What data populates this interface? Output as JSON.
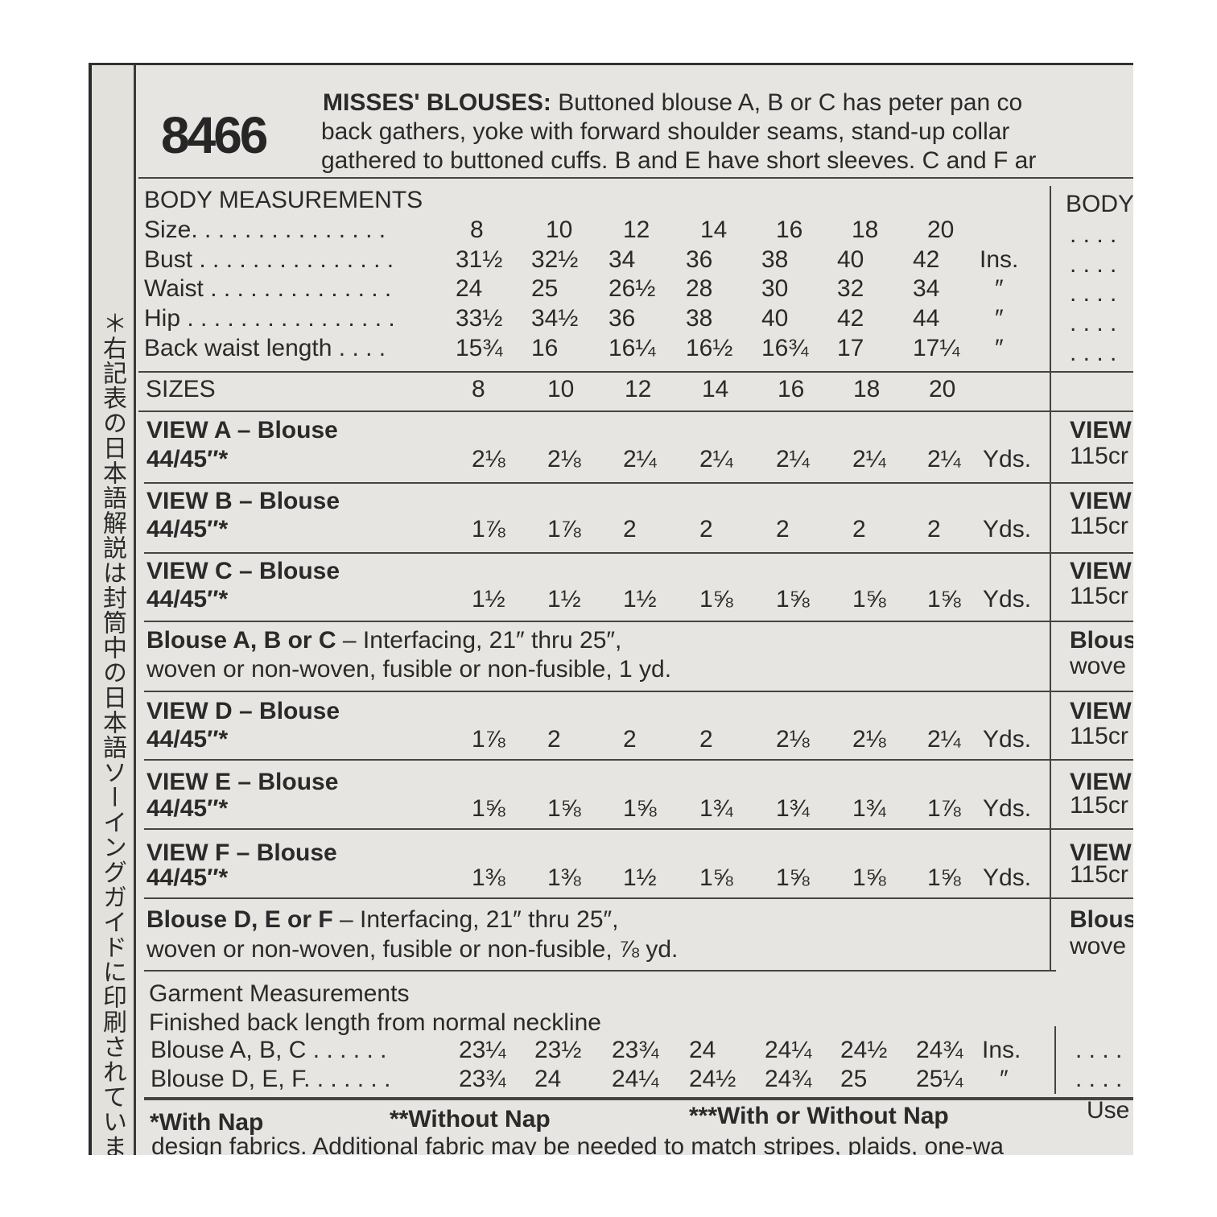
{
  "pattern_number": "8466",
  "side_note": "＊右記表の日本語解説は封筒中の日本語ソーイングガイドに印刷されていま",
  "description": {
    "title": "MISSES' BLOUSES:",
    "line1": "Buttoned blouse A, B or C has peter pan co",
    "line2": "back gathers, yoke with forward shoulder seams, stand-up collar",
    "line3": "gathered to buttoned cuffs. B and E have short sleeves. C and F ar"
  },
  "body_measurements": {
    "heading": "BODY MEASUREMENTS",
    "rows": [
      {
        "label": "Size. . . . . . . . . . . . . . .",
        "values": [
          "8",
          "10",
          "12",
          "14",
          "16",
          "18",
          "20"
        ],
        "unit": ""
      },
      {
        "label": "Bust . . . . . . . . . . . . . . .",
        "values": [
          "31½",
          "32½",
          "34",
          "36",
          "38",
          "40",
          "42"
        ],
        "unit": "Ins."
      },
      {
        "label": "Waist . . . . . . . . . . . . . .",
        "values": [
          "24",
          "25",
          "26½",
          "28",
          "30",
          "32",
          "34"
        ],
        "unit": "″"
      },
      {
        "label": "Hip . . . . . . . . . . . . . . . .",
        "values": [
          "33½",
          "34½",
          "36",
          "38",
          "40",
          "42",
          "44"
        ],
        "unit": "″"
      },
      {
        "label": "Back waist length . . . .",
        "values": [
          "15¾",
          "16",
          "16¼",
          "16½",
          "16¾",
          "17",
          "17¼"
        ],
        "unit": "″"
      }
    ]
  },
  "sizes": {
    "label": "SIZES",
    "values": [
      "8",
      "10",
      "12",
      "14",
      "16",
      "18",
      "20"
    ]
  },
  "sections": [
    {
      "type": "view",
      "title": "VIEW A",
      "subtitle": " – Blouse",
      "fabric": "44/45″*",
      "values": [
        "2⅛",
        "2⅛",
        "2¼",
        "2¼",
        "2¼",
        "2¼",
        "2¼"
      ],
      "unit": "Yds."
    },
    {
      "type": "view",
      "title": "VIEW B",
      "subtitle": " – Blouse",
      "fabric": "44/45″*",
      "values": [
        "1⅞",
        "1⅞",
        "2",
        "2",
        "2",
        "2",
        "2"
      ],
      "unit": "Yds."
    },
    {
      "type": "view",
      "title": "VIEW C",
      "subtitle": " – Blouse",
      "fabric": "44/45″*",
      "values": [
        "1½",
        "1½",
        "1½",
        "1⅝",
        "1⅝",
        "1⅝",
        "1⅝"
      ],
      "unit": "Yds."
    },
    {
      "type": "note",
      "title": "Blouse A, B or C",
      "subtitle": " – Interfacing, 21″ thru 25″,",
      "fabric": "woven or non-woven, fusible or non-fusible, 1 yd."
    },
    {
      "type": "view",
      "title": "VIEW D",
      "subtitle": " – Blouse",
      "fabric": "44/45″*",
      "values": [
        "1⅞",
        "2",
        "2",
        "2",
        "2⅛",
        "2⅛",
        "2¼"
      ],
      "unit": "Yds."
    },
    {
      "type": "view",
      "title": "VIEW E",
      "subtitle": " – Blouse",
      "fabric": "44/45″*",
      "values": [
        "1⅝",
        "1⅝",
        "1⅝",
        "1¾",
        "1¾",
        "1¾",
        "1⅞"
      ],
      "unit": "Yds."
    },
    {
      "type": "view",
      "title": "VIEW F",
      "subtitle": " – Blouse",
      "fabric": "44/45″*",
      "values": [
        "1⅜",
        "1⅜",
        "1½",
        "1⅝",
        "1⅝",
        "1⅝",
        "1⅝"
      ],
      "unit": "Yds."
    },
    {
      "type": "note",
      "title": "Blouse D, E or F",
      "subtitle": " – Interfacing, 21″ thru 25″,",
      "fabric": "woven or non-woven, fusible or non-fusible, ⅞ yd."
    }
  ],
  "right_column": {
    "heading": "BODY",
    "dots": ". . . .",
    "view_labels": [
      "VIEW",
      "VIEW",
      "VIEW",
      "Blous",
      "VIEW",
      "VIEW",
      "VIEW",
      "Blous"
    ],
    "sub_labels": [
      "115cr",
      "115cr",
      "115cr",
      "wove",
      "115cr",
      "115cr",
      "115cr",
      "wove"
    ]
  },
  "garment": {
    "heading": "Garment Measurements",
    "subheading": "Finished back length from normal neckline",
    "rows": [
      {
        "label": "Blouse A, B, C . . . . . .",
        "values": [
          "23¼",
          "23½",
          "23¾",
          "24",
          "24¼",
          "24½",
          "24¾"
        ],
        "unit": "Ins."
      },
      {
        "label": "Blouse D, E, F. . . . . . .",
        "values": [
          "23¾",
          "24",
          "24¼",
          "24½",
          "24¾",
          "25",
          "25¼"
        ],
        "unit": "″"
      }
    ]
  },
  "footer": {
    "with_nap": "*With Nap",
    "without_nap": "**Without Nap",
    "with_or_without": "***With or Without Nap",
    "use": "Use",
    "line2": "design fabrics. Additional fabric may be needed to match stripes, plaids, one-wa"
  }
}
